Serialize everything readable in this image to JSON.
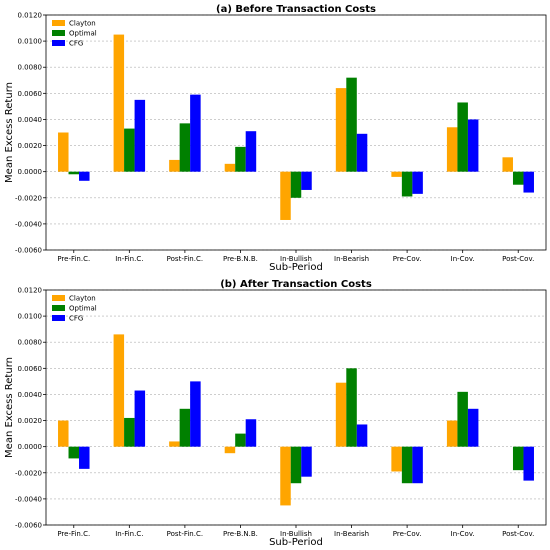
{
  "chart_data": [
    {
      "type": "bar",
      "title": "(a) Before Transaction Costs",
      "xlabel": "Sub-Period",
      "ylabel": "Mean Excess Return",
      "categories": [
        "Pre-Fin.C.",
        "In-Fin.C.",
        "Post-Fin.C.",
        "Pre-B.N.B.",
        "In-Bullish",
        "In-Bearish",
        "Pre-Cov.",
        "In-Cov.",
        "Post-Cov."
      ],
      "series": [
        {
          "name": "Clayton",
          "color": "#FFA500",
          "values": [
            0.003,
            0.0105,
            0.0009,
            0.0006,
            -0.0037,
            0.0064,
            -0.0004,
            0.0034,
            0.0011
          ]
        },
        {
          "name": "Optimal",
          "color": "#008000",
          "values": [
            -0.0002,
            0.0033,
            0.0037,
            0.0019,
            -0.002,
            0.0072,
            -0.0019,
            0.0053,
            -0.001
          ]
        },
        {
          "name": "CFG",
          "color": "#0000FF",
          "values": [
            -0.0007,
            0.0055,
            0.0059,
            0.0031,
            -0.0014,
            0.0029,
            -0.0017,
            0.004,
            -0.0016
          ]
        }
      ],
      "ylim": [
        -0.006,
        0.012
      ],
      "yticks": [
        "-0.0060",
        "-0.0040",
        "-0.0020",
        "0.0000",
        "0.0020",
        "0.0040",
        "0.0060",
        "0.0080",
        "0.0100",
        "0.0120"
      ],
      "grid": "horizontal dashed",
      "legend": "top-left"
    },
    {
      "type": "bar",
      "title": "(b) After Transaction Costs",
      "xlabel": "Sub-Period",
      "ylabel": "Mean Excess Return",
      "categories": [
        "Pre-Fin.C.",
        "In-Fin.C.",
        "Post-Fin.C.",
        "Pre-B.N.B.",
        "In-Bullish",
        "In-Bearish",
        "Pre-Cov.",
        "In-Cov.",
        "Post-Cov."
      ],
      "series": [
        {
          "name": "Clayton",
          "color": "#FFA500",
          "values": [
            0.002,
            0.0086,
            0.0004,
            -0.0005,
            -0.0045,
            0.0049,
            -0.0019,
            0.002,
            0.0
          ]
        },
        {
          "name": "Optimal",
          "color": "#008000",
          "values": [
            -0.0009,
            0.0022,
            0.0029,
            0.001,
            -0.0028,
            0.006,
            -0.0028,
            0.0042,
            -0.0018
          ]
        },
        {
          "name": "CFG",
          "color": "#0000FF",
          "values": [
            -0.0017,
            0.0043,
            0.005,
            0.0021,
            -0.0023,
            0.0017,
            -0.0028,
            0.0029,
            -0.0026
          ]
        }
      ],
      "ylim": [
        -0.006,
        0.012
      ],
      "yticks": [
        "-0.0060",
        "-0.0040",
        "-0.0020",
        "0.0000",
        "0.0020",
        "0.0040",
        "0.0060",
        "0.0080",
        "0.0100",
        "0.0120"
      ],
      "grid": "horizontal dashed",
      "legend": "top-left"
    }
  ]
}
